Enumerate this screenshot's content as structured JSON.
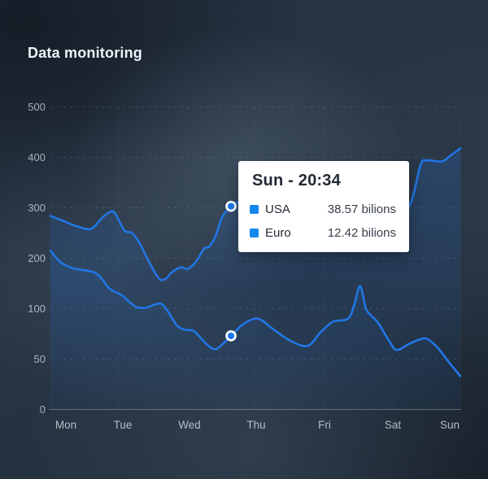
{
  "title": "Data monitoring",
  "chart_data": {
    "type": "area",
    "title": "Data monitoring",
    "x_labels": [
      "Mon",
      "Tue",
      "Wed",
      "Thu",
      "Fri",
      "Sat",
      "Sun"
    ],
    "y_ticks": [
      0,
      50,
      100,
      200,
      300,
      400,
      500
    ],
    "y_unit": "bilions",
    "grid": true,
    "legend_position": "tooltip",
    "series": [
      {
        "name": "USA",
        "color": "#2176e5",
        "points": [
          [
            -0.24,
            284
          ],
          [
            -0.04,
            274
          ],
          [
            0.18,
            263
          ],
          [
            0.39,
            258
          ],
          [
            0.54,
            277
          ],
          [
            0.66,
            290
          ],
          [
            0.76,
            290
          ],
          [
            0.91,
            255
          ],
          [
            1.03,
            250
          ],
          [
            1.15,
            229
          ],
          [
            1.29,
            194
          ],
          [
            1.44,
            161
          ],
          [
            1.54,
            158
          ],
          [
            1.66,
            173
          ],
          [
            1.79,
            182
          ],
          [
            1.9,
            179
          ],
          [
            2.03,
            194
          ],
          [
            2.15,
            219
          ],
          [
            2.23,
            223
          ],
          [
            2.33,
            244
          ],
          [
            2.43,
            281
          ],
          [
            2.57,
            303
          ],
          [
            2.7,
            310
          ],
          [
            3.15,
            297
          ],
          [
            3.79,
            265
          ],
          [
            4.54,
            253
          ],
          [
            5.05,
            274
          ],
          [
            5.35,
            305
          ],
          [
            5.52,
            385
          ],
          [
            5.62,
            394
          ],
          [
            5.85,
            392
          ],
          [
            5.97,
            402
          ],
          [
            6.14,
            418
          ]
        ]
      },
      {
        "name": "Euro",
        "color": "#2176e5",
        "points": [
          [
            -0.24,
            215
          ],
          [
            -0.08,
            192
          ],
          [
            0.09,
            181
          ],
          [
            0.24,
            177
          ],
          [
            0.39,
            174
          ],
          [
            0.48,
            169
          ],
          [
            0.58,
            156
          ],
          [
            0.66,
            142
          ],
          [
            0.75,
            134
          ],
          [
            0.87,
            127
          ],
          [
            0.99,
            113
          ],
          [
            1.1,
            103
          ],
          [
            1.25,
            102
          ],
          [
            1.47,
            110
          ],
          [
            1.6,
            96
          ],
          [
            1.73,
            83
          ],
          [
            1.86,
            79
          ],
          [
            1.99,
            78
          ],
          [
            2.11,
            70
          ],
          [
            2.24,
            62
          ],
          [
            2.34,
            60
          ],
          [
            2.46,
            66
          ],
          [
            2.57,
            73
          ],
          [
            2.77,
            85
          ],
          [
            2.99,
            90
          ],
          [
            3.22,
            80
          ],
          [
            3.47,
            69
          ],
          [
            3.76,
            63
          ],
          [
            3.97,
            77
          ],
          [
            4.16,
            87
          ],
          [
            4.39,
            90
          ],
          [
            4.49,
            108
          ],
          [
            4.58,
            145
          ],
          [
            4.67,
            100
          ],
          [
            4.77,
            92
          ],
          [
            4.87,
            85
          ],
          [
            5.03,
            68
          ],
          [
            5.15,
            59
          ],
          [
            5.34,
            65
          ],
          [
            5.49,
            69
          ],
          [
            5.62,
            70
          ],
          [
            5.79,
            61
          ],
          [
            5.96,
            47
          ],
          [
            6.14,
            33
          ]
        ]
      }
    ],
    "highlight_points": [
      {
        "series": "USA",
        "day": 2.57,
        "value": 303
      },
      {
        "series": "Euro",
        "day": 2.57,
        "value": 73
      }
    ]
  },
  "tooltip": {
    "title": "Sun - 20:34",
    "rows": [
      {
        "label": "USA",
        "value": "38.57 bilions",
        "swatch": "#1588f0"
      },
      {
        "label": "Euro",
        "value": "12.42 bilions",
        "swatch": "#1588f0"
      }
    ]
  },
  "colors": {
    "line": "#2176e5",
    "marker_fill": "#1a79f0",
    "marker_ring": "#ffffff",
    "grid": "#c8d2dc",
    "axis_text": "#ccd4dd",
    "tooltip_bg": "#ffffff",
    "background": "#243140"
  }
}
